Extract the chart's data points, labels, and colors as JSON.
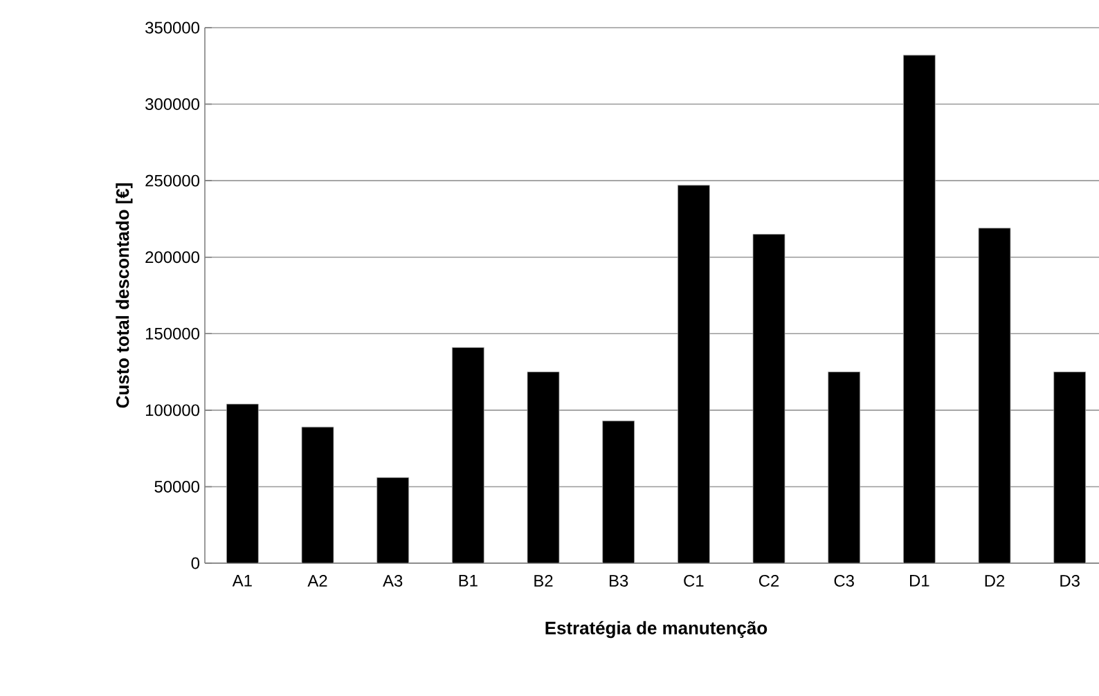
{
  "chart_data": {
    "type": "bar",
    "xlabel": "Estratégia de manutenção",
    "ylabel": "Custo total descontado [€]",
    "categories": [
      "A1",
      "A2",
      "A3",
      "B1",
      "B2",
      "B3",
      "C1",
      "C2",
      "C3",
      "D1",
      "D2",
      "D3"
    ],
    "values": [
      104000,
      89000,
      56000,
      141000,
      125000,
      93000,
      247000,
      215000,
      125000,
      332000,
      219000,
      125000
    ],
    "color": "#000000",
    "ylim": [
      0,
      350000
    ],
    "yticks": [
      0,
      50000,
      100000,
      150000,
      200000,
      250000,
      300000,
      350000
    ],
    "grid": "y"
  }
}
